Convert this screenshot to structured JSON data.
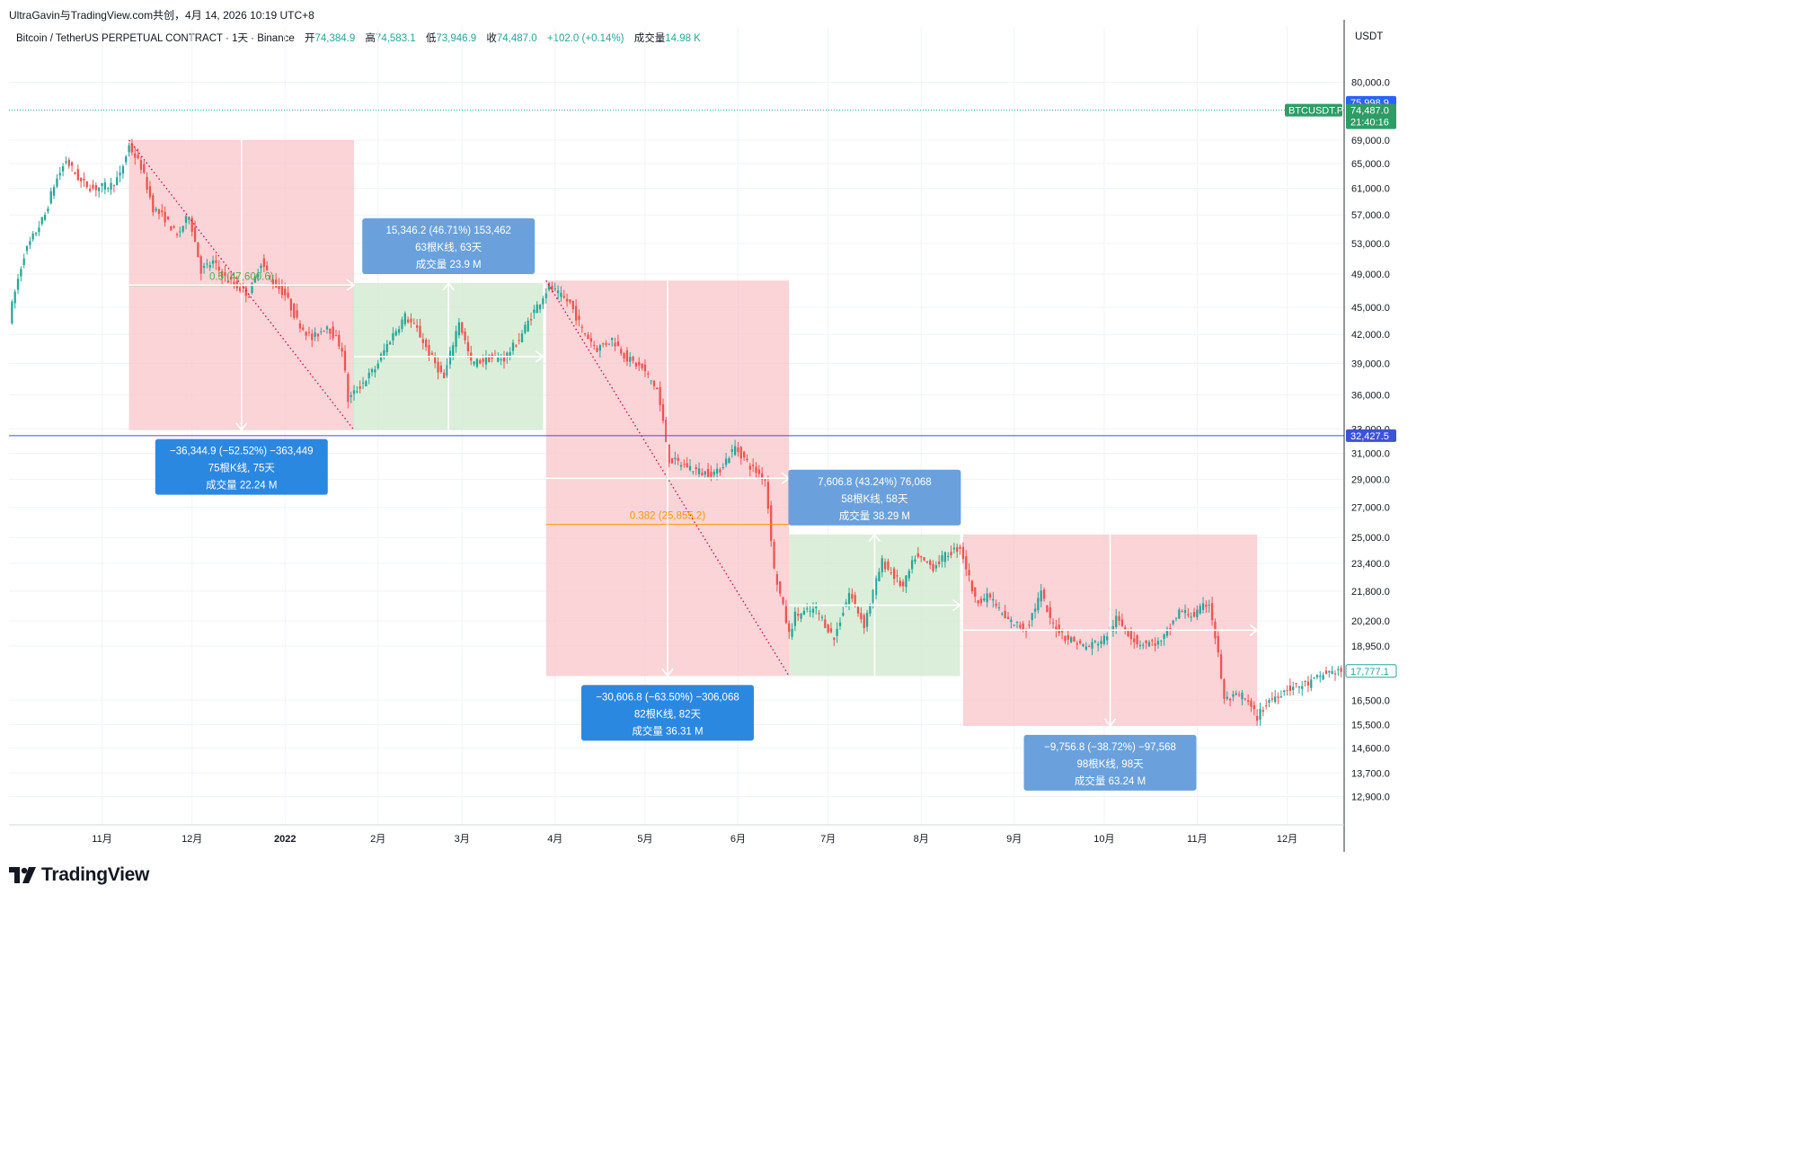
{
  "header": {
    "caption": "UltraGavin与TradingView.com共创，4月 14, 2026 10:19 UTC+8",
    "symbol_line": "Bitcoin / TetherUS PERPETUAL CONTRACT · 1天 · Binance",
    "open_label": "开",
    "open": "74,384.9",
    "high_label": "高",
    "high": "74,583.1",
    "low_label": "低",
    "low": "73,946.9",
    "close_label": "收",
    "close": "74,487.0",
    "change": "+102.0 (+0.14%)",
    "volume_label": "成交量",
    "volume": "14.98 K"
  },
  "axis": {
    "currency": "USDT"
  },
  "price_tags": {
    "blue_top": "75,998.9",
    "symbol": "BTCUSDT.P",
    "last_price": "74,487.0",
    "countdown": "21:40:16",
    "blue_level": "32,427.5",
    "current": "17,777.1"
  },
  "brand": {
    "name": "TradingView"
  },
  "colors": {
    "up": "#26a69a",
    "down": "#ef5350",
    "short_zone": "#f8c5ca",
    "long_zone": "#cfe8cc",
    "label_blue": "#2b88e1",
    "label_blue_light": "#6aa1dc",
    "horizontal_line": "#3f51d8",
    "fib_line": "#ff9800",
    "tag_green": "#2e9c65"
  },
  "chart_data": {
    "type": "candlestick",
    "y_scale": "log",
    "ylim": [
      12000,
      88000
    ],
    "y_ticks": [
      "80,000.0",
      "69,000.0",
      "65,000.0",
      "61,000.0",
      "57,000.0",
      "53,000.0",
      "49,000.0",
      "45,000.0",
      "42,000.0",
      "39,000.0",
      "36,000.0",
      "33,000.0",
      "31,000.0",
      "29,000.0",
      "27,000.0",
      "25,000.0",
      "23,400.0",
      "21,800.0",
      "20,200.0",
      "18,950.0",
      "16,500.0",
      "15,500.0",
      "14,600.0",
      "13,700.0",
      "12,900.0"
    ],
    "x_ticks": [
      "11月",
      "12月",
      "2022",
      "2月",
      "3月",
      "4月",
      "5月",
      "6月",
      "7月",
      "8月",
      "9月",
      "10月",
      "11月",
      "12月"
    ],
    "x_tick_dates": [
      "2021-11-01",
      "2021-12-01",
      "2022-01-01",
      "2022-02-01",
      "2022-03-01",
      "2022-04-01",
      "2022-05-01",
      "2022-06-01",
      "2022-07-01",
      "2022-08-01",
      "2022-09-01",
      "2022-10-01",
      "2022-11-01",
      "2022-12-01"
    ],
    "x_range": [
      "2021-10-01",
      "2022-12-20"
    ],
    "horizontal_line": 32427.5,
    "price_path": [
      [
        "2021-10-01",
        43700
      ],
      [
        "2021-10-06",
        51500
      ],
      [
        "2021-10-13",
        57000
      ],
      [
        "2021-10-16",
        61500
      ],
      [
        "2021-10-20",
        65500
      ],
      [
        "2021-10-25",
        62000
      ],
      [
        "2021-10-29",
        61000
      ],
      [
        "2021-11-04",
        61500
      ],
      [
        "2021-11-07",
        63000
      ],
      [
        "2021-11-10",
        68000
      ],
      [
        "2021-11-14",
        64500
      ],
      [
        "2021-11-18",
        58000
      ],
      [
        "2021-11-22",
        56500
      ],
      [
        "2021-11-26",
        54000
      ],
      [
        "2021-11-30",
        57000
      ],
      [
        "2021-12-04",
        49500
      ],
      [
        "2021-12-08",
        50500
      ],
      [
        "2021-12-12",
        48500
      ],
      [
        "2021-12-16",
        47500
      ],
      [
        "2021-12-20",
        46500
      ],
      [
        "2021-12-24",
        50500
      ],
      [
        "2021-12-28",
        48000
      ],
      [
        "2022-01-01",
        46500
      ],
      [
        "2022-01-05",
        43500
      ],
      [
        "2022-01-10",
        41500
      ],
      [
        "2022-01-15",
        43000
      ],
      [
        "2022-01-20",
        40500
      ],
      [
        "2022-01-22",
        35500
      ],
      [
        "2022-01-25",
        36500
      ],
      [
        "2022-01-31",
        38500
      ],
      [
        "2022-02-05",
        41500
      ],
      [
        "2022-02-10",
        44000
      ],
      [
        "2022-02-14",
        42500
      ],
      [
        "2022-02-18",
        40000
      ],
      [
        "2022-02-23",
        37500
      ],
      [
        "2022-02-28",
        43500
      ],
      [
        "2022-03-04",
        39000
      ],
      [
        "2022-03-10",
        39500
      ],
      [
        "2022-03-15",
        39500
      ],
      [
        "2022-03-20",
        41500
      ],
      [
        "2022-03-24",
        44000
      ],
      [
        "2022-03-30",
        47500
      ],
      [
        "2022-04-02",
        46500
      ],
      [
        "2022-04-06",
        45500
      ],
      [
        "2022-04-10",
        42500
      ],
      [
        "2022-04-15",
        40500
      ],
      [
        "2022-04-20",
        41500
      ],
      [
        "2022-04-25",
        39500
      ],
      [
        "2022-04-30",
        38500
      ],
      [
        "2022-05-05",
        36500
      ],
      [
        "2022-05-09",
        30500
      ],
      [
        "2022-05-15",
        30000
      ],
      [
        "2022-05-20",
        29500
      ],
      [
        "2022-05-25",
        29500
      ],
      [
        "2022-05-31",
        31500
      ],
      [
        "2022-06-05",
        30000
      ],
      [
        "2022-06-10",
        29000
      ],
      [
        "2022-06-13",
        23000
      ],
      [
        "2022-06-18",
        19500
      ],
      [
        "2022-06-20",
        20500
      ],
      [
        "2022-06-27",
        20800
      ],
      [
        "2022-07-03",
        19300
      ],
      [
        "2022-07-08",
        21700
      ],
      [
        "2022-07-13",
        20000
      ],
      [
        "2022-07-19",
        23500
      ],
      [
        "2022-07-26",
        22000
      ],
      [
        "2022-07-30",
        23800
      ],
      [
        "2022-08-05",
        23200
      ],
      [
        "2022-08-10",
        24000
      ],
      [
        "2022-08-14",
        24400
      ],
      [
        "2022-08-19",
        21300
      ],
      [
        "2022-08-24",
        21500
      ],
      [
        "2022-08-29",
        20300
      ],
      [
        "2022-09-05",
        19800
      ],
      [
        "2022-09-10",
        21700
      ],
      [
        "2022-09-13",
        20200
      ],
      [
        "2022-09-18",
        19400
      ],
      [
        "2022-09-25",
        18900
      ],
      [
        "2022-10-01",
        19300
      ],
      [
        "2022-10-05",
        20300
      ],
      [
        "2022-10-12",
        19100
      ],
      [
        "2022-10-20",
        19100
      ],
      [
        "2022-10-26",
        20700
      ],
      [
        "2022-10-31",
        20500
      ],
      [
        "2022-11-05",
        21200
      ],
      [
        "2022-11-08",
        18500
      ],
      [
        "2022-11-10",
        16500
      ],
      [
        "2022-11-16",
        16700
      ],
      [
        "2022-11-21",
        15800
      ],
      [
        "2022-11-25",
        16500
      ],
      [
        "2022-12-01",
        17000
      ],
      [
        "2022-12-08",
        17200
      ],
      [
        "2022-12-14",
        17700
      ],
      [
        "2022-12-19",
        17777
      ]
    ],
    "annotations": [
      {
        "type": "fib",
        "label": "0.5 (47,600.6)",
        "value": 47600.6,
        "from": "2021-11-10",
        "to": "2022-01-24"
      },
      {
        "type": "fib",
        "label": "0.382 (25,855.2)",
        "value": 25855.2,
        "from": "2022-03-29",
        "to": "2022-06-18"
      },
      {
        "type": "measure",
        "direction": "down",
        "from": "2021-11-10",
        "to": "2022-01-24",
        "top": 69000,
        "bottom": 32900,
        "lines": [
          "−36,344.9 (−52.52%) −363,449",
          "75根K线, 75天",
          "成交量 22.24 M"
        ],
        "style": "dark"
      },
      {
        "type": "measure",
        "direction": "up",
        "from": "2022-01-24",
        "to": "2022-03-28",
        "top": 47900,
        "bottom": 32900,
        "lines": [
          "15,346.2 (46.71%) 153,462",
          "63根K线, 63天",
          "成交量 23.9 M"
        ],
        "style": "light"
      },
      {
        "type": "measure",
        "direction": "down",
        "from": "2022-03-29",
        "to": "2022-06-18",
        "top": 48200,
        "bottom": 17550,
        "lines": [
          "−30,606.8 (−63.50%) −306,068",
          "82根K线, 82天",
          "成交量 36.31 M"
        ],
        "style": "dark"
      },
      {
        "type": "measure",
        "direction": "up",
        "from": "2022-06-18",
        "to": "2022-08-14",
        "top": 25200,
        "bottom": 17550,
        "lines": [
          "7,606.8 (43.24%) 76,068",
          "58根K线, 58天",
          "成交量 38.29 M"
        ],
        "style": "light"
      },
      {
        "type": "measure",
        "direction": "down",
        "from": "2022-08-15",
        "to": "2022-11-21",
        "top": 25200,
        "bottom": 15450,
        "lines": [
          "−9,756.8 (−38.72%) −97,568",
          "98根K线, 98天",
          "成交量 63.24 M"
        ],
        "style": "light"
      }
    ]
  }
}
